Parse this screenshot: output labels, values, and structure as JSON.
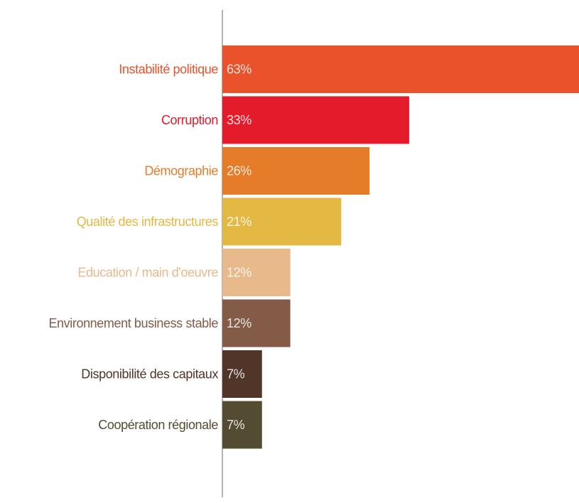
{
  "chart_data": {
    "type": "hbar",
    "categories": [
      "Instabilité politique",
      "Corruption",
      "Démographie",
      "Qualité des infrastructures",
      "Education / main d'oeuvre",
      "Environnement business stable",
      "Disponibilité des capitaux",
      "Coopération régionale"
    ],
    "values": [
      63,
      33,
      26,
      21,
      12,
      12,
      7,
      7
    ],
    "value_labels": [
      "63%",
      "33%",
      "26%",
      "21%",
      "12%",
      "12%",
      "7%",
      "7%"
    ],
    "colors": [
      "#e9522a",
      "#e31b2b",
      "#e57c2a",
      "#e3b843",
      "#e8b98a",
      "#835b47",
      "#513528",
      "#534b32"
    ],
    "xlim": [
      0,
      63
    ]
  }
}
